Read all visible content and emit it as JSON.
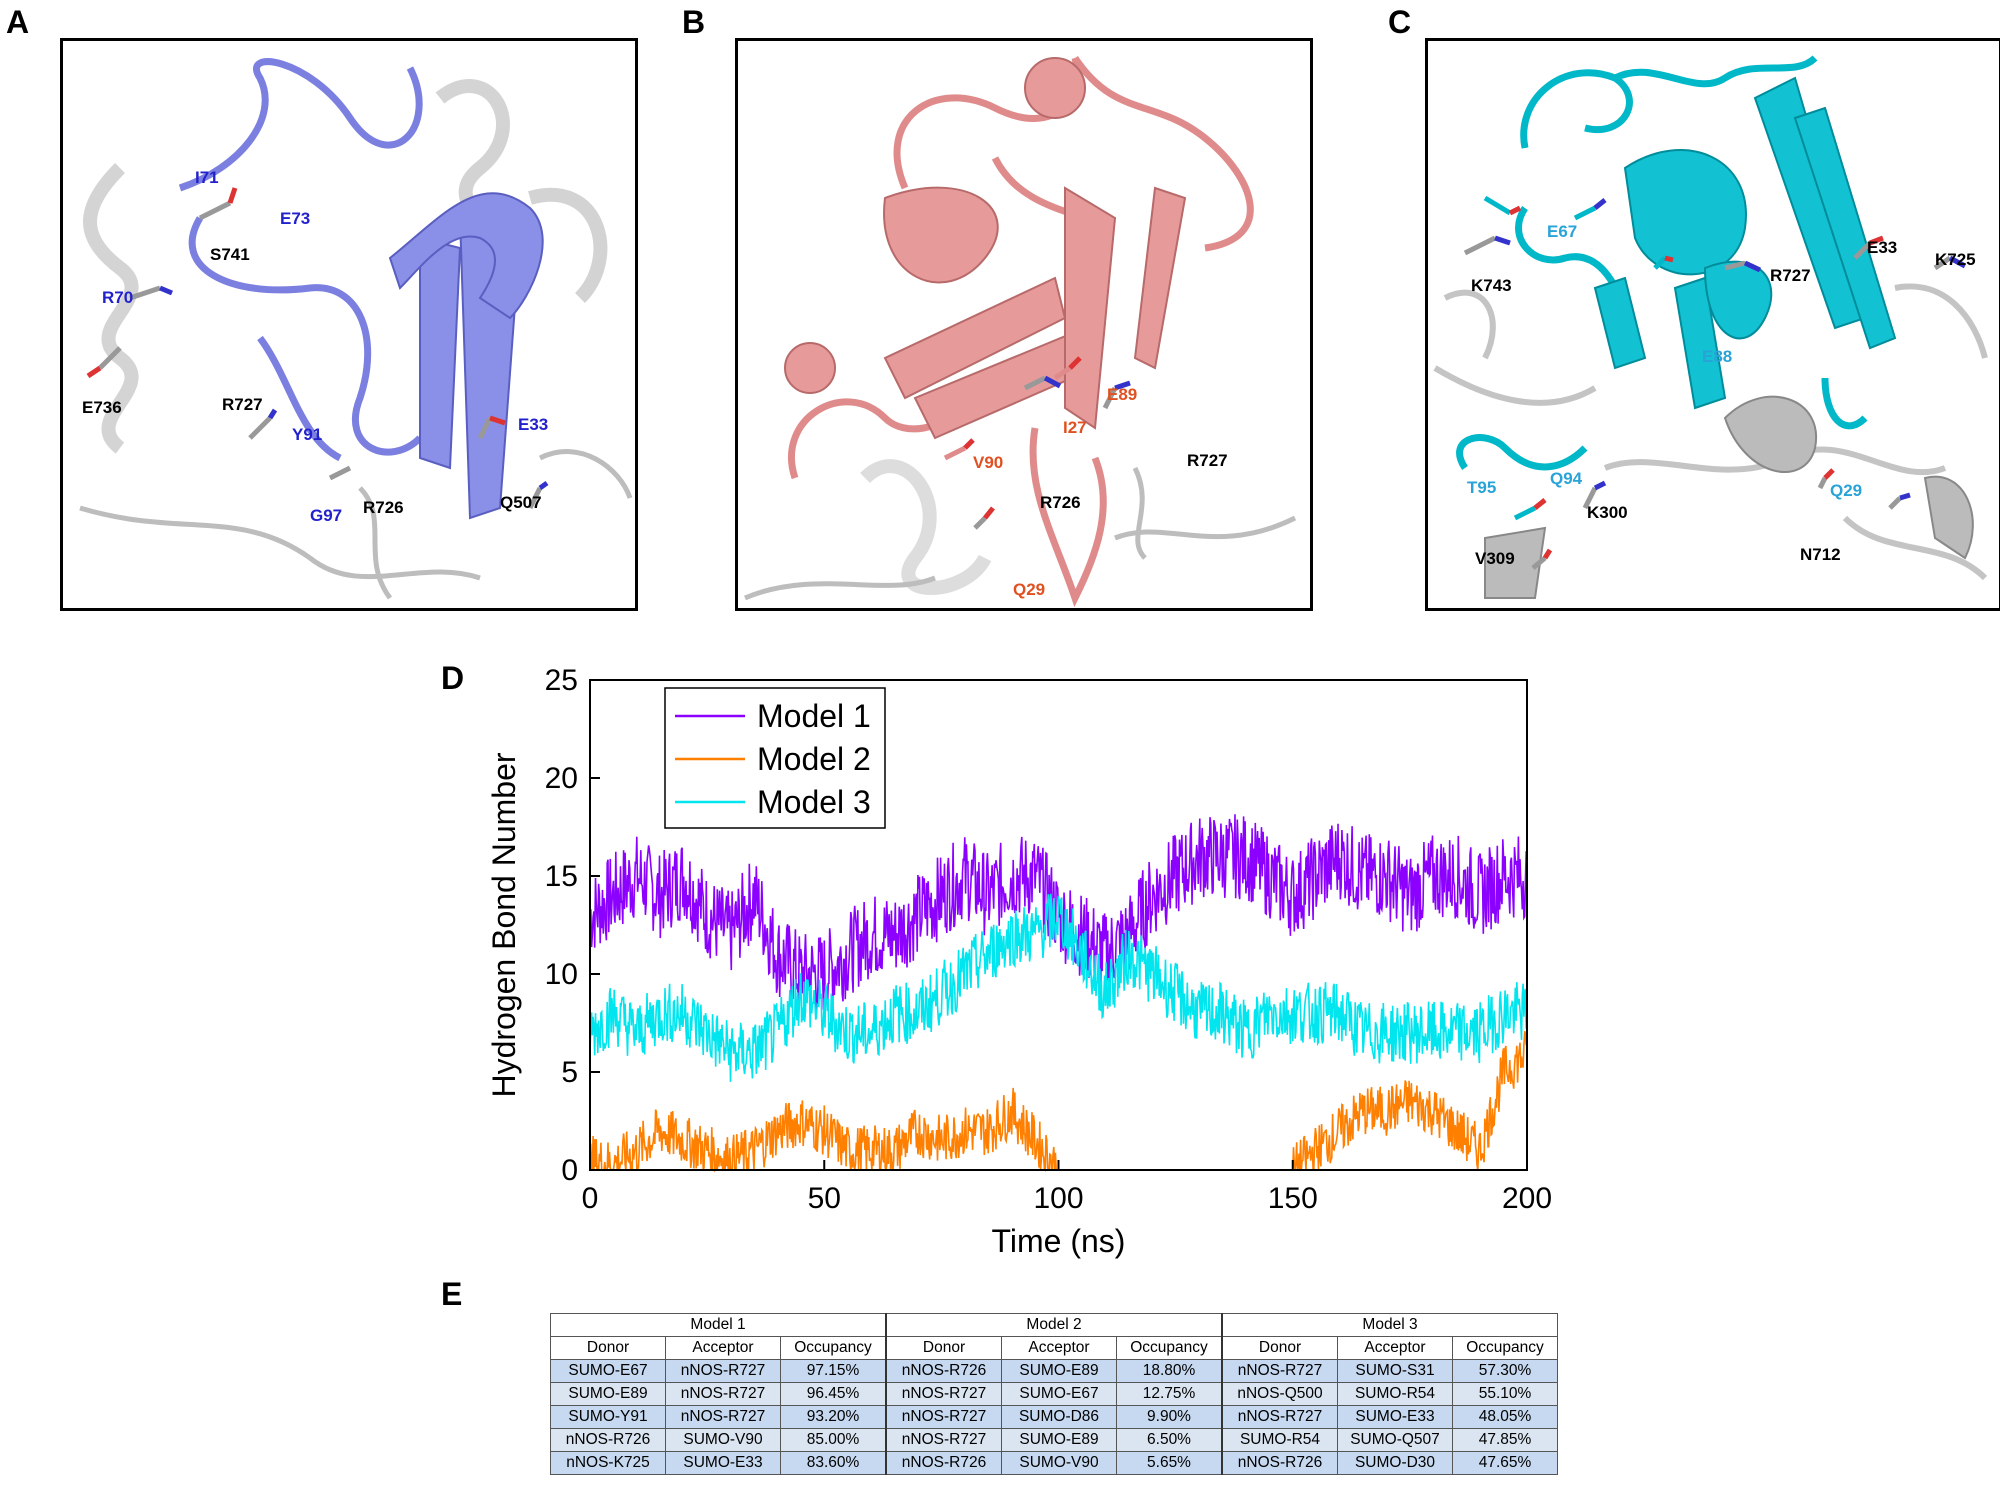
{
  "labels": {
    "A": "A",
    "B": "B",
    "C": "C",
    "D": "D",
    "E": "E"
  },
  "panelA": {
    "color": "#7b7fe0",
    "residues": {
      "i71": "I71",
      "e73": "E73",
      "s741": "S741",
      "r70": "R70",
      "e736": "E736",
      "r727": "R727",
      "y91": "Y91",
      "g97": "G97",
      "r726": "R726",
      "e33": "E33",
      "q507": "Q507"
    }
  },
  "panelB": {
    "color": "#e08b8b",
    "residues": {
      "e89": "E89",
      "i27": "I27",
      "v90": "V90",
      "r727": "R727",
      "r726": "R726",
      "q29": "Q29"
    }
  },
  "panelC": {
    "color": "#00b8c8",
    "residues": {
      "e67": "E67",
      "e33": "E33",
      "k725": "K725",
      "k743": "K743",
      "r727": "R727",
      "e88": "E88",
      "t95": "T95",
      "q94": "Q94",
      "q29": "Q29",
      "k300": "K300",
      "v309": "V309",
      "n712": "N712"
    }
  },
  "chart_data": {
    "type": "line",
    "xlabel": "Time (ns)",
    "ylabel": "Hydrogen Bond Number",
    "xlim": [
      0,
      200
    ],
    "ylim": [
      0,
      25
    ],
    "xticks": [
      0,
      50,
      100,
      150,
      200
    ],
    "yticks": [
      0,
      5,
      10,
      15,
      20,
      25
    ],
    "legend_position": "top-left",
    "series": [
      {
        "name": "Model 1",
        "color": "#8b00ff",
        "x": [
          0,
          5,
          10,
          15,
          20,
          25,
          30,
          35,
          40,
          45,
          50,
          55,
          60,
          65,
          70,
          75,
          80,
          85,
          90,
          95,
          100,
          105,
          110,
          115,
          120,
          125,
          130,
          135,
          140,
          145,
          150,
          155,
          160,
          165,
          170,
          175,
          180,
          185,
          190,
          195,
          200
        ],
        "y": [
          13,
          14,
          15,
          14,
          15,
          13,
          12,
          14,
          11,
          10,
          10,
          11,
          12,
          12,
          13,
          14,
          15,
          14,
          15,
          15,
          13,
          12,
          11,
          12,
          14,
          15,
          16,
          16,
          16,
          15,
          14,
          15,
          16,
          15,
          15,
          14,
          15,
          15,
          14,
          15,
          15
        ]
      },
      {
        "name": "Model 2",
        "color": "#ff7f00",
        "x": [
          0,
          5,
          10,
          15,
          20,
          25,
          30,
          35,
          40,
          45,
          50,
          55,
          60,
          65,
          70,
          75,
          80,
          85,
          90,
          95,
          100,
          105,
          110,
          115,
          120,
          125,
          130,
          135,
          140,
          145,
          150,
          155,
          160,
          165,
          170,
          175,
          180,
          185,
          190,
          195,
          200
        ],
        "y": [
          0.5,
          0.3,
          1,
          2,
          1.5,
          1,
          0.5,
          1,
          2,
          2.5,
          2,
          1,
          1,
          1,
          2,
          1.5,
          2,
          2,
          3,
          1.5,
          0,
          0,
          0,
          0,
          0,
          0,
          0,
          0,
          0,
          0,
          0,
          1,
          2,
          3,
          3,
          3.5,
          3,
          2,
          1,
          5,
          6
        ]
      },
      {
        "name": "Model 3",
        "color": "#00e5ee",
        "x": [
          0,
          5,
          10,
          15,
          20,
          25,
          30,
          35,
          40,
          45,
          50,
          55,
          60,
          65,
          70,
          75,
          80,
          85,
          90,
          95,
          100,
          105,
          110,
          115,
          120,
          125,
          130,
          135,
          140,
          145,
          150,
          155,
          160,
          165,
          170,
          175,
          180,
          185,
          190,
          195,
          200
        ],
        "y": [
          7,
          8,
          7,
          8,
          8,
          7,
          6,
          6,
          7,
          9,
          8,
          7,
          7,
          8,
          8,
          9,
          10,
          11,
          12,
          12,
          13,
          11,
          9,
          11,
          10,
          9,
          8,
          8,
          7,
          8,
          8,
          8,
          8,
          7,
          7,
          7,
          7,
          7,
          7,
          8,
          8
        ]
      }
    ]
  },
  "tableE": {
    "groups": [
      "Model 1",
      "Model 2",
      "Model 3"
    ],
    "headers": [
      "Donor",
      "Acceptor",
      "Occupancy",
      "Donor",
      "Acceptor",
      "Occupancy",
      "Donor",
      "Acceptor",
      "Occupancy"
    ],
    "rows": [
      [
        "SUMO-E67",
        "nNOS-R727",
        "97.15%",
        "nNOS-R726",
        "SUMO-E89",
        "18.80%",
        "nNOS-R727",
        "SUMO-S31",
        "57.30%"
      ],
      [
        "SUMO-E89",
        "nNOS-R727",
        "96.45%",
        "nNOS-R727",
        "SUMO-E67",
        "12.75%",
        "nNOS-Q500",
        "SUMO-R54",
        "55.10%"
      ],
      [
        "SUMO-Y91",
        "nNOS-R727",
        "93.20%",
        "nNOS-R727",
        "SUMO-D86",
        "9.90%",
        "nNOS-R727",
        "SUMO-E33",
        "48.05%"
      ],
      [
        "nNOS-R726",
        "SUMO-V90",
        "85.00%",
        "nNOS-R727",
        "SUMO-E89",
        "6.50%",
        "SUMO-R54",
        "SUMO-Q507",
        "47.85%"
      ],
      [
        "nNOS-K725",
        "SUMO-E33",
        "83.60%",
        "nNOS-R726",
        "SUMO-V90",
        "5.65%",
        "nNOS-R726",
        "SUMO-D30",
        "47.65%"
      ]
    ]
  }
}
